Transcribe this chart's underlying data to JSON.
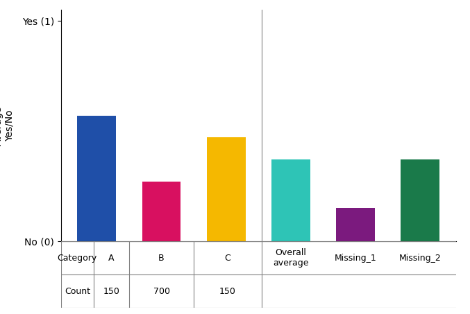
{
  "categories": [
    "A",
    "B",
    "C",
    "Overall\naverage",
    "Missing_1",
    "Missing_2"
  ],
  "values": [
    0.57,
    0.27,
    0.47,
    0.37,
    0.15,
    0.37
  ],
  "bar_colors": [
    "#1f4fa8",
    "#d81060",
    "#f5b800",
    "#2ec4b6",
    "#7b1a7e",
    "#1a7a4a"
  ],
  "ylabel": "Average\nYes/No",
  "yticks": [
    0,
    1
  ],
  "ytick_labels": [
    "No (0)",
    "Yes (1)"
  ],
  "ylim": [
    0,
    1.05
  ],
  "table_category_row": [
    "Category",
    "A",
    "B",
    "C"
  ],
  "table_count_row": [
    "Count",
    "150",
    "700",
    "150"
  ],
  "extra_labels": [
    "Overall\naverage",
    "Missing_1",
    "Missing_2"
  ],
  "fig_width": 6.77,
  "fig_height": 4.53,
  "bg_color": "#ffffff",
  "bar_width": 0.6
}
